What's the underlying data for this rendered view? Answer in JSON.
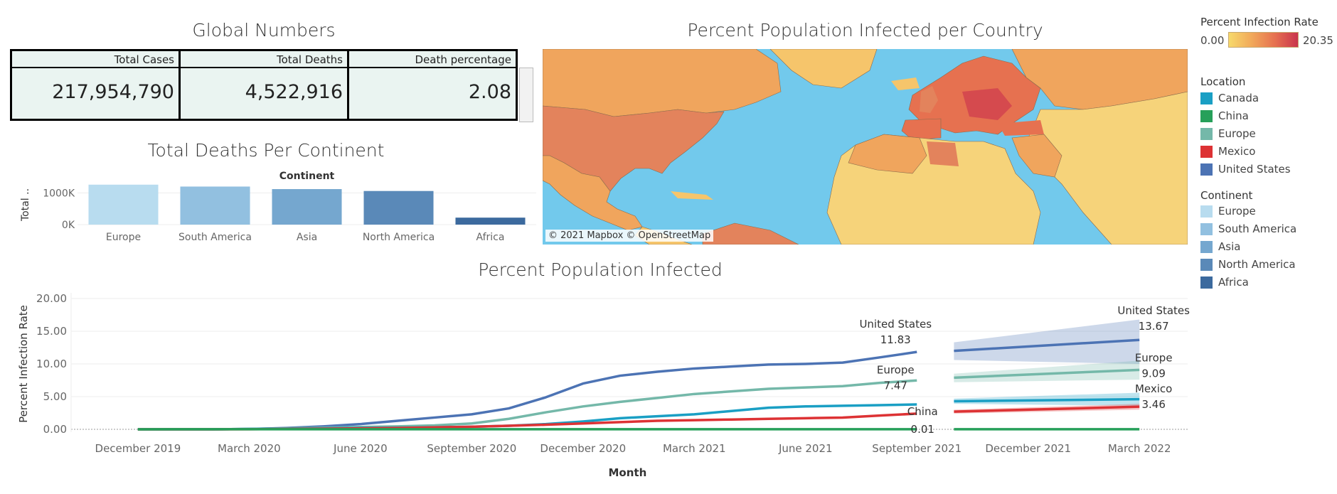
{
  "global_numbers": {
    "title": "Global Numbers",
    "headers": [
      "Total Cases",
      "Total Deaths",
      "Death percentage"
    ],
    "values": [
      "217,954,790",
      "4,522,916",
      "2.08"
    ]
  },
  "map": {
    "title": "Percent Population Infected per Country",
    "credit": "© 2021 Mapbox © OpenStreetMap"
  },
  "legend_rate": {
    "title": "Percent Infection Rate",
    "min": "0.00",
    "max": "20.35"
  },
  "legend_location": {
    "title": "Location",
    "items": [
      {
        "label": "Canada",
        "color": "#1a9fc4"
      },
      {
        "label": "China",
        "color": "#27a05a"
      },
      {
        "label": "Europe",
        "color": "#74b8a9"
      },
      {
        "label": "Mexico",
        "color": "#dd3234"
      },
      {
        "label": "United States",
        "color": "#4c73b4"
      }
    ]
  },
  "legend_continent": {
    "title": "Continent",
    "items": [
      {
        "label": "Europe",
        "color": "#b8dcef"
      },
      {
        "label": "South America",
        "color": "#92c0e0"
      },
      {
        "label": "Asia",
        "color": "#75a7cf"
      },
      {
        "label": "North America",
        "color": "#5a89b8"
      },
      {
        "label": "Africa",
        "color": "#3c6a9e"
      }
    ]
  },
  "chart_data": [
    {
      "type": "bar",
      "title": "Total Deaths Per Continent",
      "column_header": "Continent",
      "ylabel": "Total ..",
      "categories": [
        "Europe",
        "South America",
        "Asia",
        "North America",
        "Africa"
      ],
      "values": [
        1260000,
        1200000,
        1120000,
        1060000,
        220000
      ],
      "colors": [
        "#b8dcef",
        "#92c0e0",
        "#75a7cf",
        "#5a89b8",
        "#3c6a9e"
      ],
      "yticks": [
        {
          "value": 0,
          "label": "0K"
        },
        {
          "value": 1000000,
          "label": "1000K"
        }
      ],
      "ylim": [
        0,
        1300000
      ]
    },
    {
      "type": "line",
      "title": "Percent Population Infected",
      "xlabel": "Month",
      "ylabel": "Percent Infection Rate",
      "ylim": [
        0,
        20
      ],
      "yticks": [
        "0.00",
        "5.00",
        "10.00",
        "15.00",
        "20.00"
      ],
      "xticks": [
        {
          "label": "December 2019",
          "x": 0
        },
        {
          "label": "March 2020",
          "x": 3
        },
        {
          "label": "June 2020",
          "x": 6
        },
        {
          "label": "September 2020",
          "x": 9
        },
        {
          "label": "December 2020",
          "x": 12
        },
        {
          "label": "March 2021",
          "x": 15
        },
        {
          "label": "June 2021",
          "x": 18
        },
        {
          "label": "September 2021",
          "x": 21
        },
        {
          "label": "December 2021",
          "x": 24
        },
        {
          "label": "March 2022",
          "x": 27
        }
      ],
      "series": [
        {
          "name": "United States",
          "color": "#4c73b4",
          "x": [
            0,
            1,
            2,
            3,
            4,
            5,
            6,
            7,
            8,
            9,
            10,
            11,
            12,
            13,
            14,
            15,
            16,
            17,
            18,
            19,
            20,
            21
          ],
          "values": [
            0,
            0,
            0,
            0.05,
            0.2,
            0.45,
            0.8,
            1.3,
            1.8,
            2.3,
            3.2,
            4.9,
            7.0,
            8.2,
            8.8,
            9.3,
            9.6,
            9.9,
            10.0,
            10.2,
            11.0,
            11.83
          ],
          "forecast": {
            "x": [
              22,
              27
            ],
            "values": [
              12.0,
              13.67
            ],
            "lower": [
              10.6,
              10.0
            ],
            "upper": [
              13.3,
              16.8
            ]
          },
          "label_end": "11.83",
          "label_fc": "13.67"
        },
        {
          "name": "Europe",
          "color": "#74b8a9",
          "x": [
            0,
            1,
            2,
            3,
            4,
            5,
            6,
            7,
            8,
            9,
            10,
            11,
            12,
            13,
            14,
            15,
            16,
            17,
            18,
            19,
            20,
            21
          ],
          "values": [
            0,
            0,
            0,
            0.05,
            0.15,
            0.25,
            0.35,
            0.45,
            0.6,
            0.9,
            1.6,
            2.6,
            3.5,
            4.2,
            4.8,
            5.4,
            5.8,
            6.2,
            6.4,
            6.6,
            7.1,
            7.47
          ],
          "forecast": {
            "x": [
              22,
              27
            ],
            "values": [
              7.9,
              9.09
            ],
            "lower": [
              7.2,
              7.6
            ],
            "upper": [
              8.5,
              10.5
            ]
          },
          "label_end": "7.47",
          "label_fc": "9.09"
        },
        {
          "name": "Canada",
          "color": "#1a9fc4",
          "x": [
            0,
            1,
            2,
            3,
            4,
            5,
            6,
            7,
            8,
            9,
            10,
            11,
            12,
            13,
            14,
            15,
            16,
            17,
            18,
            19,
            20,
            21
          ],
          "values": [
            0,
            0,
            0,
            0.05,
            0.1,
            0.15,
            0.2,
            0.25,
            0.3,
            0.4,
            0.55,
            0.8,
            1.2,
            1.7,
            2.0,
            2.3,
            2.8,
            3.3,
            3.5,
            3.6,
            3.7,
            3.8
          ],
          "forecast": {
            "x": [
              22,
              27
            ],
            "values": [
              4.3,
              4.6
            ],
            "lower": [
              3.9,
              3.6
            ],
            "upper": [
              4.7,
              5.6
            ]
          },
          "label_end": "",
          "label_fc": ""
        },
        {
          "name": "Mexico",
          "color": "#dd3234",
          "x": [
            0,
            1,
            2,
            3,
            4,
            5,
            6,
            7,
            8,
            9,
            10,
            11,
            12,
            13,
            14,
            15,
            16,
            17,
            18,
            19,
            20,
            21
          ],
          "values": [
            0,
            0,
            0,
            0.02,
            0.05,
            0.1,
            0.15,
            0.2,
            0.3,
            0.4,
            0.55,
            0.7,
            0.9,
            1.1,
            1.3,
            1.4,
            1.5,
            1.6,
            1.7,
            1.8,
            2.1,
            2.4
          ],
          "forecast": {
            "x": [
              22,
              27
            ],
            "values": [
              2.7,
              3.46
            ],
            "lower": [
              2.4,
              3.0
            ],
            "upper": [
              3.0,
              3.9
            ]
          },
          "label_end": "",
          "label_fc": "3.46"
        },
        {
          "name": "China",
          "color": "#27a05a",
          "x": [
            0,
            1,
            2,
            3,
            4,
            5,
            6,
            7,
            8,
            9,
            10,
            11,
            12,
            13,
            14,
            15,
            16,
            17,
            18,
            19,
            20,
            21
          ],
          "values": [
            0,
            0.01,
            0.01,
            0.01,
            0.01,
            0.01,
            0.01,
            0.01,
            0.01,
            0.01,
            0.01,
            0.01,
            0.01,
            0.01,
            0.01,
            0.01,
            0.01,
            0.01,
            0.01,
            0.01,
            0.01,
            0.01
          ],
          "forecast": {
            "x": [
              22,
              27
            ],
            "values": [
              0.01,
              0.01
            ],
            "lower": [
              0.01,
              0.01
            ],
            "upper": [
              0.01,
              0.01
            ]
          },
          "label_end": "0.01",
          "label_fc": ""
        }
      ]
    }
  ]
}
